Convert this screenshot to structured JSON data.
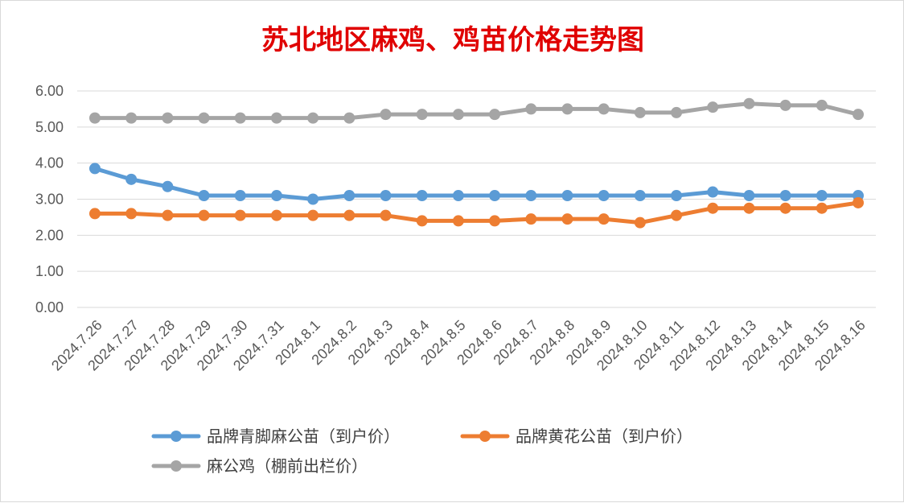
{
  "chart_data": {
    "type": "line",
    "title": "苏北地区麻鸡、鸡苗价格走势图",
    "xlabel": "",
    "ylabel": "",
    "ylim": [
      0,
      6
    ],
    "yticks": [
      "0.00",
      "1.00",
      "2.00",
      "3.00",
      "4.00",
      "5.00",
      "6.00"
    ],
    "grid": true,
    "legend_position": "bottom",
    "categories": [
      "2024.7.26",
      "2024.7.27",
      "2024.7.28",
      "2024.7.29",
      "2024.7.30",
      "2024.7.31",
      "2024.8.1",
      "2024.8.2",
      "2024.8.3",
      "2024.8.4",
      "2024.8.5",
      "2024.8.6",
      "2024.8.7",
      "2024.8.8",
      "2024.8.9",
      "2024.8.10",
      "2024.8.11",
      "2024.8.12",
      "2024.8.13",
      "2024.8.14",
      "2024.8.15",
      "2024.8.16"
    ],
    "series": [
      {
        "name": "品牌青脚麻公苗（到户价）",
        "color": "#5b9bd5",
        "values": [
          3.85,
          3.55,
          3.35,
          3.1,
          3.1,
          3.1,
          3.0,
          3.1,
          3.1,
          3.1,
          3.1,
          3.1,
          3.1,
          3.1,
          3.1,
          3.1,
          3.1,
          3.2,
          3.1,
          3.1,
          3.1,
          3.1
        ]
      },
      {
        "name": "品牌黄花公苗（到户价）",
        "color": "#ed7d31",
        "values": [
          2.6,
          2.6,
          2.55,
          2.55,
          2.55,
          2.55,
          2.55,
          2.55,
          2.55,
          2.4,
          2.4,
          2.4,
          2.45,
          2.45,
          2.45,
          2.35,
          2.55,
          2.75,
          2.75,
          2.75,
          2.75,
          2.9
        ]
      },
      {
        "name": "麻公鸡（棚前出栏价）",
        "color": "#a5a5a5",
        "values": [
          5.25,
          5.25,
          5.25,
          5.25,
          5.25,
          5.25,
          5.25,
          5.25,
          5.35,
          5.35,
          5.35,
          5.35,
          5.5,
          5.5,
          5.5,
          5.4,
          5.4,
          5.55,
          5.65,
          5.6,
          5.6,
          5.35
        ]
      }
    ]
  }
}
